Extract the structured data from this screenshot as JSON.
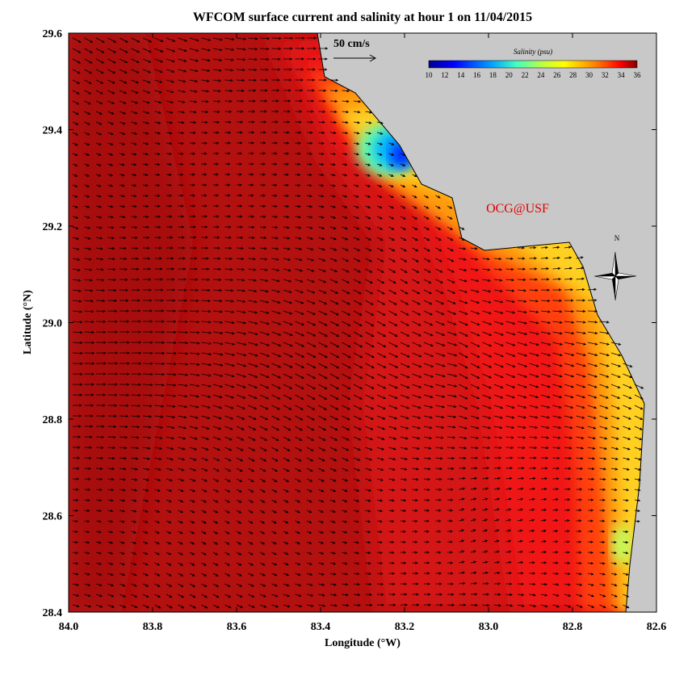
{
  "title": "WFCOM surface current and salinity at hour 1 on 11/04/2015",
  "x_axis": {
    "label": "Longitude (°W)",
    "ticks": [
      "84.0",
      "83.8",
      "83.6",
      "83.4",
      "83.2",
      "83.0",
      "82.8",
      "82.6"
    ]
  },
  "y_axis": {
    "label": "Latitude (°N)",
    "ticks": [
      "29.6",
      "29.4",
      "29.2",
      "29.0",
      "28.8",
      "28.6",
      "28.4"
    ]
  },
  "colorbar": {
    "title": "Salinity (psu)",
    "ticks": [
      "10",
      "12",
      "14",
      "16",
      "18",
      "20",
      "22",
      "24",
      "26",
      "28",
      "30",
      "32",
      "34",
      "36"
    ]
  },
  "scale_arrow": {
    "label": "50 cm/s"
  },
  "credit": "OCG@USF",
  "compass": "N"
}
